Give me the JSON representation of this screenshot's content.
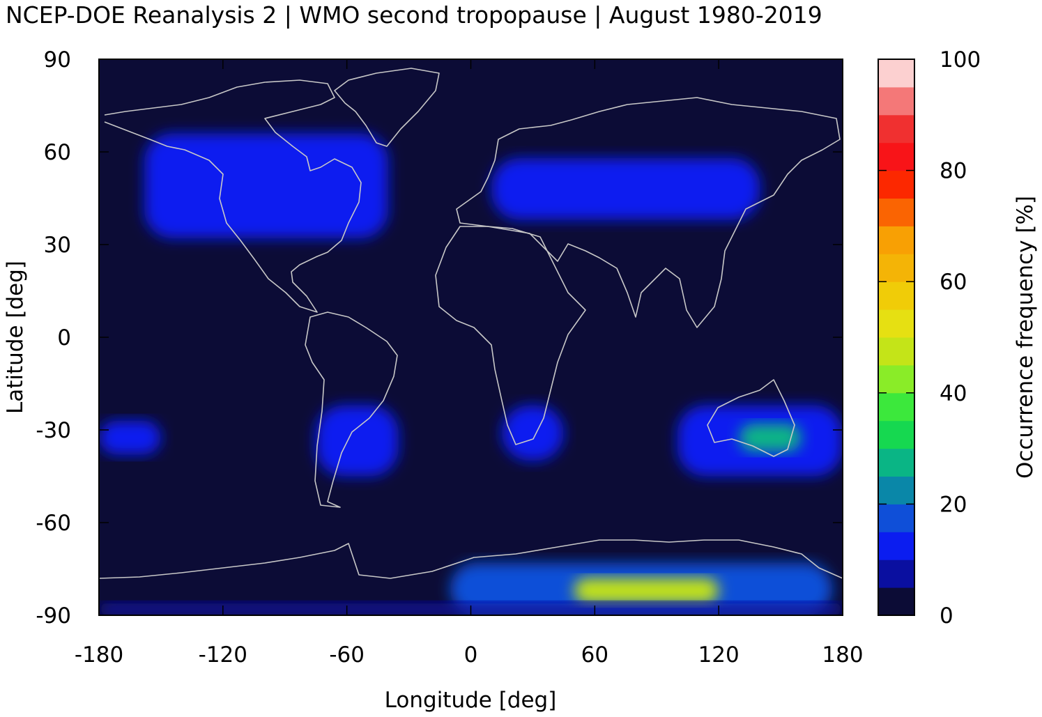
{
  "title": "NCEP-DOE Reanalysis 2 | WMO second tropopause | August 1980-2019",
  "chart_data": {
    "type": "heatmap",
    "title": "NCEP-DOE Reanalysis 2 | WMO second tropopause | August 1980-2019",
    "xlabel": "Longitude [deg]",
    "ylabel": "Latitude [deg]",
    "colorbar_label": "Occurrence frequency [%]",
    "xlim": [
      -180,
      180
    ],
    "ylim": [
      -90,
      90
    ],
    "x_ticks": [
      "-180",
      "-120",
      "-60",
      "0",
      "60",
      "120",
      "180"
    ],
    "y_ticks": [
      "90",
      "60",
      "30",
      "0",
      "-30",
      "-60",
      "-90"
    ],
    "colorbar_ticks": [
      "100",
      "80",
      "60",
      "40",
      "20",
      "0"
    ],
    "colorbar_range": [
      0,
      100
    ],
    "colorbar_levels": [
      {
        "from": 0,
        "to": 5,
        "color": "#0c0c36"
      },
      {
        "from": 5,
        "to": 10,
        "color": "#0a0fa0"
      },
      {
        "from": 10,
        "to": 15,
        "color": "#0b1df0"
      },
      {
        "from": 15,
        "to": 20,
        "color": "#0f4fd8"
      },
      {
        "from": 20,
        "to": 25,
        "color": "#0a87a8"
      },
      {
        "from": 25,
        "to": 30,
        "color": "#0ab585"
      },
      {
        "from": 30,
        "to": 35,
        "color": "#16d850"
      },
      {
        "from": 35,
        "to": 40,
        "color": "#3ce83c"
      },
      {
        "from": 40,
        "to": 45,
        "color": "#8aec28"
      },
      {
        "from": 45,
        "to": 50,
        "color": "#c4e418"
      },
      {
        "from": 50,
        "to": 55,
        "color": "#e6e012"
      },
      {
        "from": 55,
        "to": 60,
        "color": "#f0cc08"
      },
      {
        "from": 60,
        "to": 65,
        "color": "#f4b406"
      },
      {
        "from": 65,
        "to": 70,
        "color": "#f8a004"
      },
      {
        "from": 70,
        "to": 75,
        "color": "#fa6402"
      },
      {
        "from": 75,
        "to": 80,
        "color": "#fc2800"
      },
      {
        "from": 80,
        "to": 85,
        "color": "#f81418"
      },
      {
        "from": 85,
        "to": 90,
        "color": "#f03030"
      },
      {
        "from": 90,
        "to": 95,
        "color": "#f47878"
      },
      {
        "from": 95,
        "to": 100,
        "color": "#fcd0d0"
      }
    ],
    "background_color": "#0c0c36",
    "coastline_color": "#c8c8c8",
    "regions": [
      {
        "lon": [
          -158,
          -40
        ],
        "lat": [
          32,
          66
        ],
        "value": 12
      },
      {
        "lon": [
          10,
          140
        ],
        "lat": [
          38,
          58
        ],
        "value": 12
      },
      {
        "lon": [
          -75,
          -35
        ],
        "lat": [
          -45,
          -22
        ],
        "value": 12
      },
      {
        "lon": [
          15,
          45
        ],
        "lat": [
          -40,
          -22
        ],
        "value": 11
      },
      {
        "lon": [
          100,
          180
        ],
        "lat": [
          -45,
          -22
        ],
        "value": 14
      },
      {
        "lon": [
          130,
          160
        ],
        "lat": [
          -37,
          -28
        ],
        "value": 28
      },
      {
        "lon": [
          -180,
          -150
        ],
        "lat": [
          -38,
          -27
        ],
        "value": 10
      },
      {
        "lon": [
          -10,
          175
        ],
        "lat": [
          -90,
          -73
        ],
        "value": 18
      },
      {
        "lon": [
          50,
          120
        ],
        "lat": [
          -86,
          -78
        ],
        "value": 45
      },
      {
        "lon": [
          -180,
          180
        ],
        "lat": [
          -90,
          -86
        ],
        "value": 6
      }
    ]
  }
}
